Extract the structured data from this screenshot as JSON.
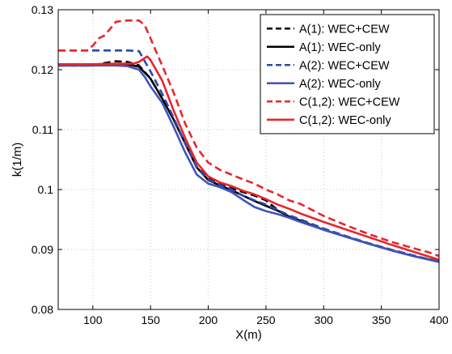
{
  "chart_data": {
    "type": "line",
    "title": "",
    "xlabel": "X(m)",
    "ylabel": "k(1/m)",
    "xlim": [
      70,
      400
    ],
    "ylim": [
      0.08,
      0.13
    ],
    "xticks": [
      100,
      150,
      200,
      250,
      300,
      350,
      400
    ],
    "yticks": [
      0.08,
      0.09,
      0.1,
      0.11,
      0.12,
      0.13
    ],
    "xtick_labels": [
      "100",
      "150",
      "200",
      "250",
      "300",
      "350",
      "400"
    ],
    "ytick_labels": [
      "0.08",
      "0.09",
      "0.1",
      "0.11",
      "0.12",
      "0.13"
    ],
    "grid": true,
    "legend_position": "top-right",
    "series": [
      {
        "name": "A(1): WEC+CEW",
        "color": "#000000",
        "dash": "dashed",
        "x": [
          70,
          100,
          110,
          120,
          130,
          140,
          150,
          160,
          170,
          180,
          190,
          200,
          210,
          220,
          230,
          240,
          250,
          260,
          270,
          280,
          300,
          320,
          340,
          360,
          380,
          400
        ],
        "y": [
          0.1207,
          0.1207,
          0.1211,
          0.1214,
          0.1213,
          0.1207,
          0.1185,
          0.1152,
          0.1117,
          0.1077,
          0.1038,
          0.1019,
          0.101,
          0.1002,
          0.0996,
          0.099,
          0.0982,
          0.0966,
          0.0955,
          0.0948,
          0.0933,
          0.0921,
          0.0909,
          0.0898,
          0.0888,
          0.088
        ]
      },
      {
        "name": "A(1): WEC-only",
        "color": "#000000",
        "dash": "solid",
        "x": [
          70,
          100,
          110,
          120,
          130,
          140,
          150,
          160,
          170,
          180,
          190,
          200,
          210,
          220,
          230,
          240,
          250,
          260,
          270,
          280,
          300,
          320,
          340,
          360,
          380,
          400
        ],
        "y": [
          0.1207,
          0.1207,
          0.1208,
          0.1209,
          0.1209,
          0.1205,
          0.1185,
          0.1152,
          0.1117,
          0.1077,
          0.1037,
          0.1016,
          0.1007,
          0.0999,
          0.099,
          0.0981,
          0.0973,
          0.0965,
          0.0955,
          0.0948,
          0.0933,
          0.0921,
          0.0909,
          0.0898,
          0.0888,
          0.088
        ]
      },
      {
        "name": "A(2): WEC+CEW",
        "color": "#2b4aa8",
        "dash": "dashed",
        "x": [
          70,
          100,
          120,
          130,
          140,
          150,
          160,
          170,
          180,
          190,
          200,
          210,
          220,
          230,
          240,
          250,
          260,
          270,
          280,
          300,
          320,
          340,
          360,
          380,
          400
        ],
        "y": [
          0.1232,
          0.1232,
          0.1232,
          0.1232,
          0.1231,
          0.1197,
          0.116,
          0.112,
          0.1077,
          0.1038,
          0.1017,
          0.1008,
          0.1,
          0.099,
          0.0982,
          0.0975,
          0.0966,
          0.0957,
          0.095,
          0.0935,
          0.0922,
          0.091,
          0.0899,
          0.0889,
          0.088
        ]
      },
      {
        "name": "A(2): WEC-only",
        "color": "#3f54b8",
        "dash": "solid",
        "x": [
          70,
          100,
          120,
          130,
          140,
          145,
          150,
          160,
          170,
          180,
          190,
          200,
          210,
          220,
          230,
          240,
          250,
          260,
          270,
          280,
          300,
          320,
          340,
          360,
          380,
          400
        ],
        "y": [
          0.1207,
          0.1207,
          0.1207,
          0.1206,
          0.12,
          0.1188,
          0.1172,
          0.1145,
          0.1105,
          0.1062,
          0.1025,
          0.101,
          0.1004,
          0.0996,
          0.0983,
          0.0971,
          0.0964,
          0.0959,
          0.0953,
          0.0946,
          0.0933,
          0.0921,
          0.0909,
          0.0898,
          0.0888,
          0.0879
        ]
      },
      {
        "name": "C(1,2): WEC+CEW",
        "color": "#e8262b",
        "dash": "dashed",
        "x": [
          70,
          95,
          100,
          105,
          110,
          115,
          120,
          130,
          140,
          145,
          150,
          160,
          170,
          180,
          190,
          200,
          210,
          220,
          230,
          240,
          250,
          260,
          270,
          280,
          300,
          320,
          340,
          360,
          380,
          390,
          400
        ],
        "y": [
          0.1232,
          0.1232,
          0.124,
          0.1252,
          0.1257,
          0.1268,
          0.128,
          0.1282,
          0.1282,
          0.1274,
          0.1252,
          0.1207,
          0.1162,
          0.111,
          0.107,
          0.1045,
          0.1033,
          0.1025,
          0.1017,
          0.101,
          0.1,
          0.0992,
          0.0982,
          0.0976,
          0.0956,
          0.094,
          0.0925,
          0.0912,
          0.0901,
          0.0896,
          0.0889
        ]
      },
      {
        "name": "C(1,2): WEC-only",
        "color": "#e8262b",
        "dash": "solid",
        "x": [
          70,
          100,
          120,
          135,
          140,
          147,
          150,
          160,
          170,
          180,
          190,
          200,
          210,
          220,
          230,
          240,
          250,
          260,
          270,
          280,
          300,
          320,
          340,
          360,
          380,
          400
        ],
        "y": [
          0.1209,
          0.1209,
          0.121,
          0.121,
          0.1213,
          0.1222,
          0.1216,
          0.1182,
          0.1132,
          0.1086,
          0.1045,
          0.1022,
          0.1012,
          0.1006,
          0.0998,
          0.0992,
          0.0984,
          0.0975,
          0.0968,
          0.096,
          0.0946,
          0.0933,
          0.092,
          0.0907,
          0.0895,
          0.0883
        ]
      }
    ]
  }
}
